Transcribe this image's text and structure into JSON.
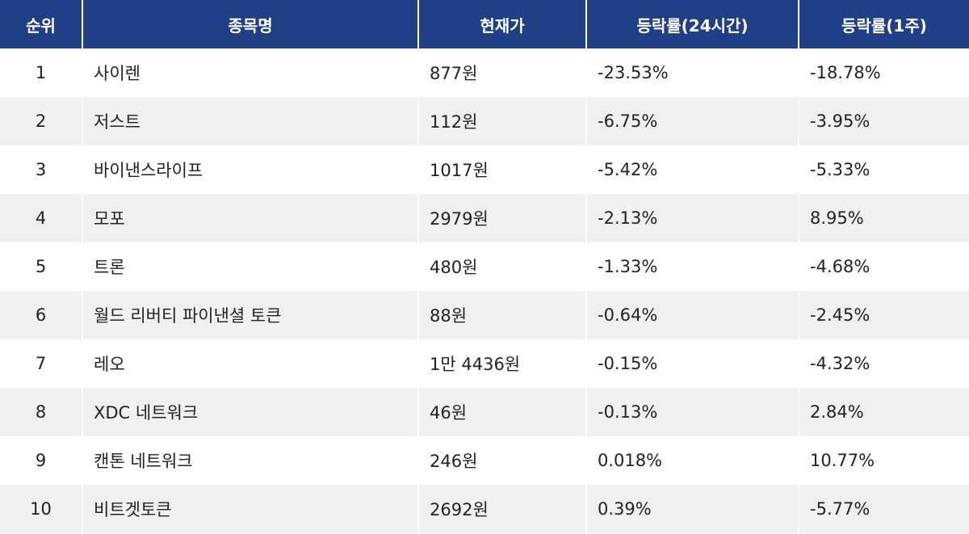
{
  "headers": [
    "순위",
    "종목명",
    "현재가",
    "등락률(24시간)",
    "등락률(1주)"
  ],
  "rows": [
    {
      "rank": "1",
      "name": "사이렌",
      "price": "877원",
      "change24h": "-23.53%",
      "change1w": "-18.78%"
    },
    {
      "rank": "2",
      "name": "저스트",
      "price": "112원",
      "change24h": "-6.75%",
      "change1w": "-3.95%"
    },
    {
      "rank": "3",
      "name": "바이낸스라이프",
      "price": "1017원",
      "change24h": "-5.42%",
      "change1w": "-5.33%"
    },
    {
      "rank": "4",
      "name": "모포",
      "price": "2979원",
      "change24h": "-2.13%",
      "change1w": "8.95%"
    },
    {
      "rank": "5",
      "name": "트론",
      "price": "480원",
      "change24h": "-1.33%",
      "change1w": "-4.68%"
    },
    {
      "rank": "6",
      "name": "월드 리버티 파이낸셜 토큰",
      "price": "88원",
      "change24h": "-0.64%",
      "change1w": "-2.45%"
    },
    {
      "rank": "7",
      "name": "레오",
      "price": "1만 4436원",
      "change24h": "-0.15%",
      "change1w": "-4.32%"
    },
    {
      "rank": "8",
      "name": "XDC 네트워크",
      "price": "46원",
      "change24h": "-0.13%",
      "change1w": "2.84%"
    },
    {
      "rank": "9",
      "name": "캔톤 네트워크",
      "price": "246원",
      "change24h": "0.018%",
      "change1w": "10.77%"
    },
    {
      "rank": "10",
      "name": "비트겟토큰",
      "price": "2692원",
      "change24h": "0.39%",
      "change1w": "-5.77%"
    }
  ],
  "colors": {
    "header_bg": "#1f3f87",
    "header_text": "#ffffff",
    "row_alt": "#f0f0f0",
    "row": "#ffffff",
    "text": "#222222"
  }
}
